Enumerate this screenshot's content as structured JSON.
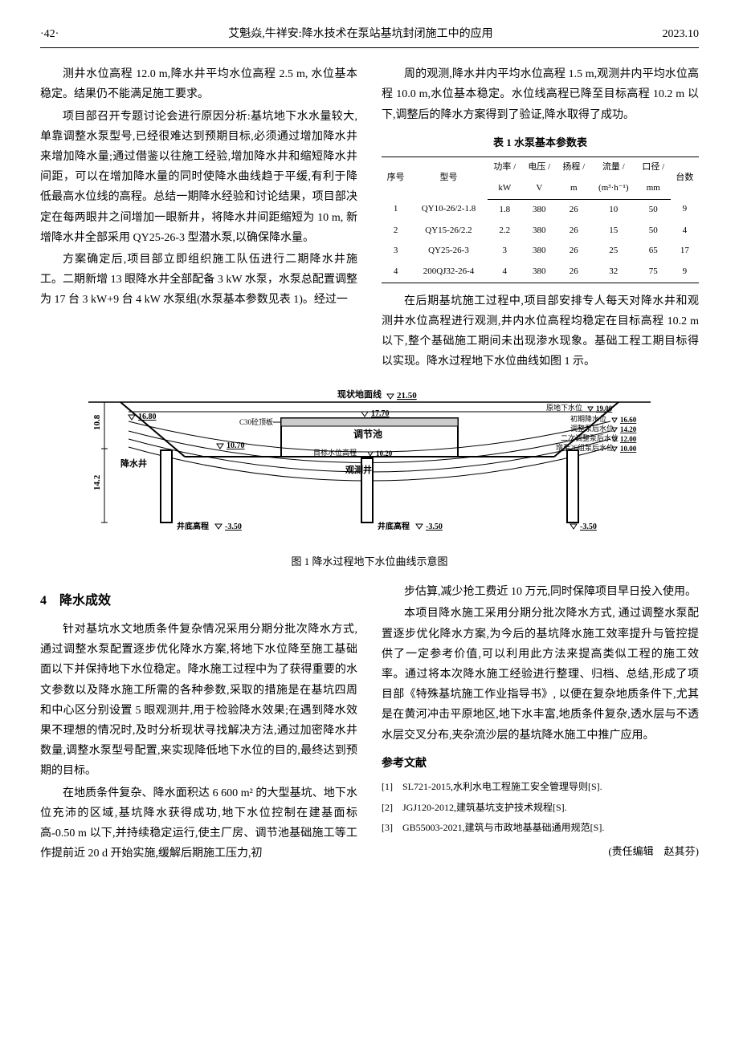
{
  "header": {
    "page": "·42·",
    "title": "艾魁焱,牛祥安:降水技术在泵站基坑封闭施工中的应用",
    "date": "2023.10"
  },
  "left_col": {
    "p1": "测井水位高程 12.0 m,降水井平均水位高程 2.5 m, 水位基本稳定。结果仍不能满足施工要求。",
    "p2": "项目部召开专题讨论会进行原因分析:基坑地下水水量较大,单靠调整水泵型号,已经很难达到预期目标,必须通过增加降水井来增加降水量;通过借鉴以往施工经验,增加降水井和缩短降水井间距，可以在增加降水量的同时使降水曲线趋于平缓,有利于降低最高水位线的高程。总结一期降水经验和讨论结果，项目部决定在每两眼井之间增加一眼新井，将降水井间距缩短为 10 m, 新增降水井全部采用 QY25-26-3 型潜水泵,以确保降水量。",
    "p3": "方案确定后,项目部立即组织施工队伍进行二期降水井施工。二期新增 13 眼降水井全部配备 3 kW 水泵，水泵总配置调整为 17 台 3 kW+9 台 4 kW 水泵组(水泵基本参数见表 1)。经过一"
  },
  "right_col": {
    "p1": "周的观测,降水井内平均水位高程 1.5 m,观测井内平均水位高程 10.0 m,水位基本稳定。水位线高程已降至目标高程 10.2 m 以下,调整后的降水方案得到了验证,降水取得了成功。",
    "p2": "在后期基坑施工过程中,项目部安排专人每天对降水井和观测井水位高程进行观测,井内水位高程均稳定在目标高程 10.2 m 以下,整个基础施工期间未出现渗水现象。基础工程工期目标得以实现。降水过程地下水位曲线如图 1 示。"
  },
  "table": {
    "caption": "表 1  水泵基本参数表",
    "headers_row1": [
      "序号",
      "型号",
      "功率 /",
      "电压 /",
      "扬程 /",
      "流量 /",
      "口径 /",
      "台数"
    ],
    "headers_row2": [
      "",
      "",
      "kW",
      "V",
      "m",
      "(m³·h⁻¹)",
      "mm",
      ""
    ],
    "rows": [
      [
        "1",
        "QY10-26/2-1.8",
        "1.8",
        "380",
        "26",
        "10",
        "50",
        "9"
      ],
      [
        "2",
        "QY15-26/2.2",
        "2.2",
        "380",
        "26",
        "15",
        "50",
        "4"
      ],
      [
        "3",
        "QY25-26-3",
        "3",
        "380",
        "26",
        "25",
        "65",
        "17"
      ],
      [
        "4",
        "200QJ32-26-4",
        "4",
        "380",
        "26",
        "32",
        "75",
        "9"
      ]
    ]
  },
  "figure": {
    "caption": "图 1  降水过程地下水位曲线示意图",
    "labels": {
      "ground_line": "现状地面线",
      "ground_elev": "21.50",
      "orig_gw": "原地下水位",
      "orig_gw_elev": "19.00",
      "phase1": "初期降水位",
      "phase1_elev": "16.60",
      "adj_pump": "调整泵后水位",
      "adj_pump_elev": "14.20",
      "phase2": "二次调整泵后水位",
      "phase2_elev": "12.00",
      "add26": "增至26组泵后水位",
      "add26_elev": "10.00",
      "target": "目标水位高程",
      "target_elev": "10.20",
      "pool": "调节池",
      "dewatering_well": "降水井",
      "obs_well": "观测井",
      "well_bottom": "井底高程",
      "well_bottom_elev": "-3.50",
      "c30": "C30砼顶板",
      "dim1": "10.8",
      "dim2": "14.2",
      "elev_16_80": "16.80",
      "elev_17_70": "17.70",
      "elev_10_70": "10.70"
    },
    "colors": {
      "stroke": "#000000",
      "fill_none": "none",
      "watermark": "#e8e8e8"
    }
  },
  "section4": {
    "head": "4　降水成效",
    "left": {
      "p1": "针对基坑水文地质条件复杂情况采用分期分批次降水方式,通过调整水泵配置逐步优化降水方案,将地下水位降至施工基础面以下并保持地下水位稳定。降水施工过程中为了获得重要的水文参数以及降水施工所需的各种参数,采取的措施是在基坑四周和中心区分别设置 5 眼观测井,用于检验降水效果;在遇到降水效果不理想的情况时,及时分析现状寻找解决方法,通过加密降水井数量,调整水泵型号配置,来实现降低地下水位的目的,最终达到预期的目标。",
      "p2": "在地质条件复杂、降水面积达 6 600 m² 的大型基坑、地下水位充沛的区域,基坑降水获得成功,地下水位控制在建基面标高-0.50 m 以下,并持续稳定运行,使主厂房、调节池基础施工等工作提前近 20 d 开始实施,缓解后期施工压力,初"
    },
    "right": {
      "p1": "步估算,减少抢工费近 10 万元,同时保障项目早日投入使用。",
      "p2": "本项目降水施工采用分期分批次降水方式, 通过调整水泵配置逐步优化降水方案,为今后的基坑降水施工效率提升与管控提供了一定参考价值,可以利用此方法来提高类似工程的施工效率。通过将本次降水施工经验进行整理、归档、总结,形成了项目部《特殊基坑施工作业指导书》, 以便在复杂地质条件下,尤其是在黄河冲击平原地区,地下水丰富,地质条件复杂,透水层与不透水层交叉分布,夹杂流沙层的基坑降水施工中推广应用。"
    }
  },
  "refs": {
    "head": "参考文献",
    "items": [
      "[1]　SL721-2015,水利水电工程施工安全管理导则[S].",
      "[2]　JGJ120-2012,建筑基坑支护技术规程[S].",
      "[3]　GB55003-2021,建筑与市政地基基础通用规范[S]."
    ],
    "editor": "(责任编辑　赵其芬)"
  }
}
